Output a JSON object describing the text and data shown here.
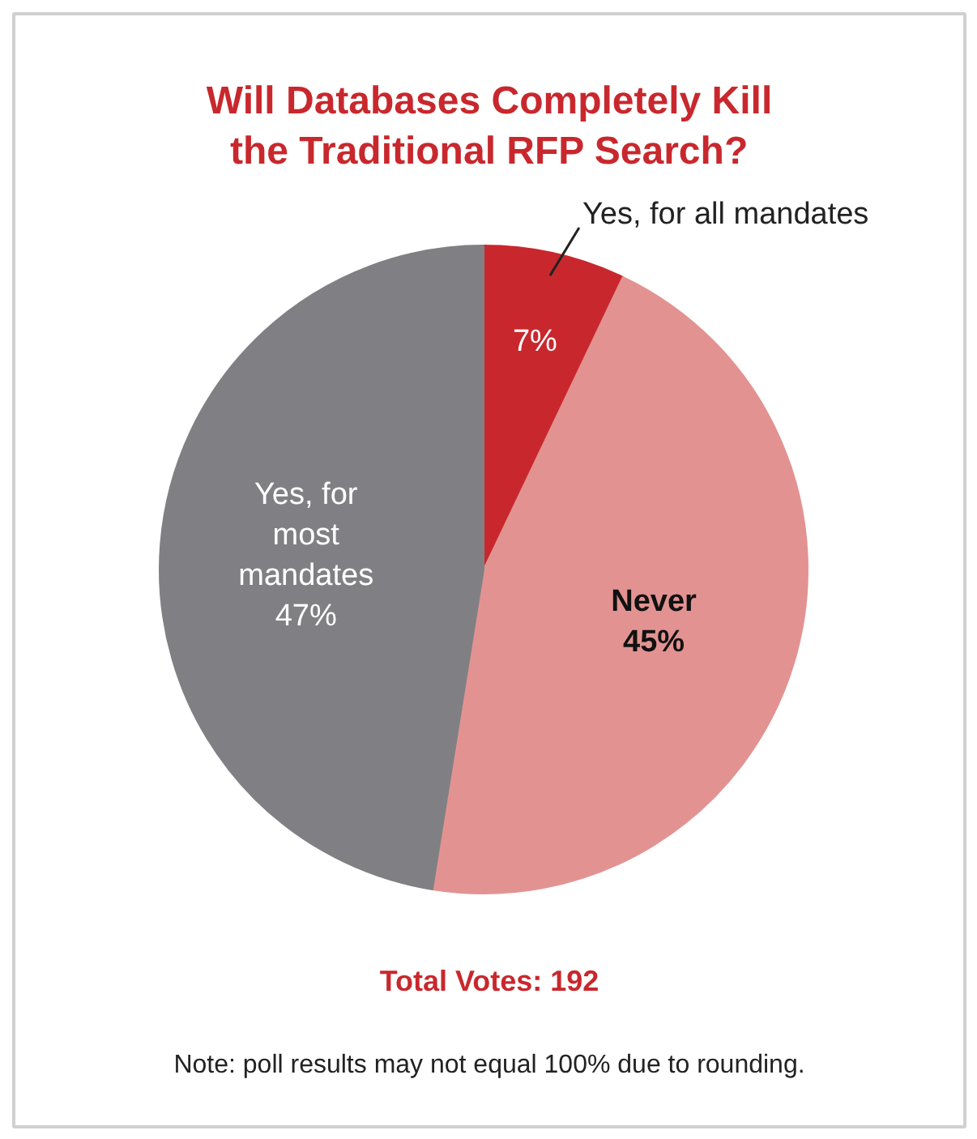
{
  "chart_data": {
    "type": "pie",
    "title": "Will Databases Completely Kill the Traditional RFP Search?",
    "categories": [
      "Yes, for all mandates",
      "Never",
      "Yes, for most mandates"
    ],
    "values": [
      7,
      45,
      47
    ],
    "colors": [
      "#c8282d",
      "#e29391",
      "#808084"
    ],
    "value_labels": [
      "7%",
      "45%",
      "47%"
    ],
    "annotations": [
      "Total Votes: 192",
      "Note: poll results may not equal 100% due to rounding."
    ]
  }
}
